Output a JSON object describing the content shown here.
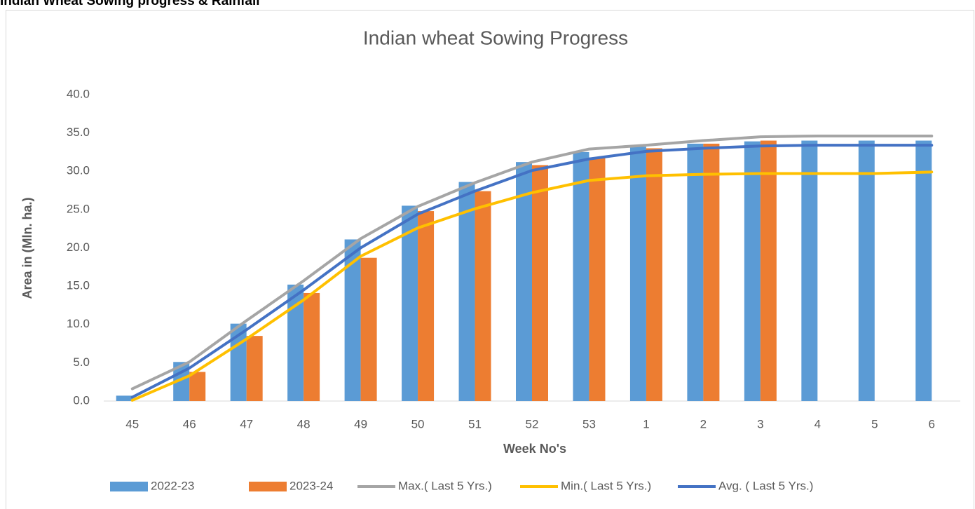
{
  "header": {
    "title": "Indian Wheat Sowing progress & Rainfall"
  },
  "chart_data": {
    "type": "bar",
    "title": "Indian wheat Sowing Progress",
    "x_label": "Week No's",
    "y_label": "Area in (Mln. ha.)",
    "categories": [
      "45",
      "46",
      "47",
      "48",
      "49",
      "50",
      "51",
      "52",
      "53",
      "1",
      "2",
      "3",
      "4",
      "5",
      "6"
    ],
    "ylim": [
      0,
      40
    ],
    "yticks": [
      {
        "value": 0,
        "label": "0.0"
      },
      {
        "value": 5,
        "label": "5.0"
      },
      {
        "value": 10,
        "label": "10.0"
      },
      {
        "value": 15,
        "label": "15.0"
      },
      {
        "value": 20,
        "label": "20.0"
      },
      {
        "value": 25,
        "label": "25.0"
      },
      {
        "value": 30,
        "label": "30.0"
      },
      {
        "value": 35,
        "label": "35.0"
      },
      {
        "value": 40,
        "label": "40.0"
      }
    ],
    "grid": false,
    "legend": "bottom",
    "series": [
      {
        "name": "2022-23",
        "type": "bar",
        "color": "#5b9bd5",
        "values": [
          0.7,
          5.1,
          10.1,
          15.2,
          21.1,
          25.5,
          28.6,
          31.2,
          32.5,
          33.2,
          33.6,
          33.9,
          34.0,
          34.0,
          34.0
        ]
      },
      {
        "name": "2023-24",
        "type": "bar",
        "color": "#ed7d31",
        "values": [
          null,
          3.8,
          8.5,
          14.1,
          18.7,
          24.8,
          27.4,
          30.8,
          31.8,
          33.0,
          33.6,
          34.0,
          null,
          null,
          null
        ]
      },
      {
        "name": "Max.( Last 5 Yrs.)",
        "type": "line",
        "color": "#a5a5a5",
        "values": [
          1.6,
          5.1,
          10.5,
          15.7,
          21.2,
          25.4,
          28.5,
          31.2,
          32.9,
          33.4,
          34.0,
          34.5,
          34.6,
          34.6,
          34.6
        ]
      },
      {
        "name": "Min.( Last 5 Yrs.)",
        "type": "line",
        "color": "#ffc000",
        "values": [
          0.1,
          3.3,
          8.1,
          13.2,
          18.9,
          22.6,
          25.1,
          27.2,
          28.8,
          29.4,
          29.6,
          29.7,
          29.7,
          29.7,
          29.9
        ]
      },
      {
        "name": "Avg. ( Last 5 Yrs.)",
        "type": "line",
        "color": "#4472c4",
        "values": [
          0.5,
          4.3,
          9.3,
          14.5,
          20.0,
          24.4,
          27.4,
          30.1,
          31.6,
          32.6,
          33.0,
          33.3,
          33.4,
          33.4,
          33.4
        ]
      }
    ]
  }
}
